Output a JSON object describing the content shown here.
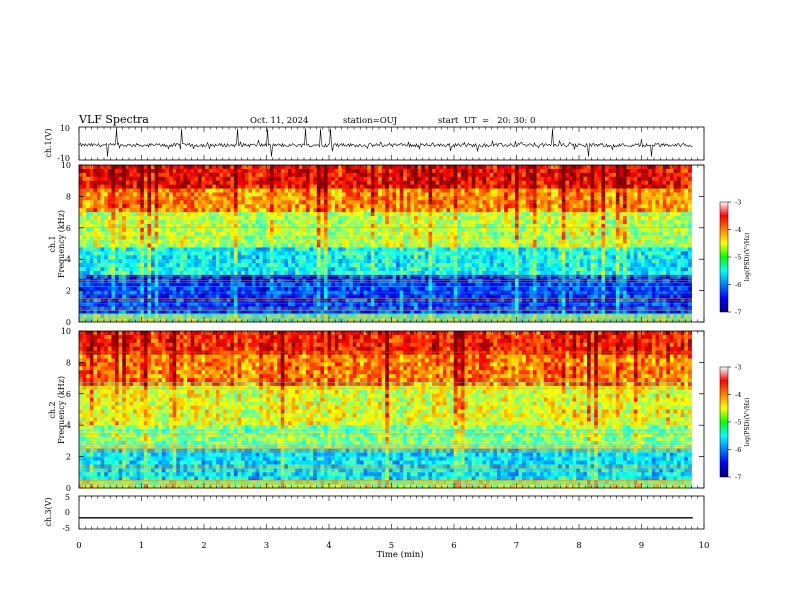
{
  "header": {
    "title": "VLF Spectra",
    "date": "Oct. 11, 2024",
    "station": "station=OUJ",
    "start": "start  UT  =   20: 30: 0"
  },
  "chart_data": [
    {
      "type": "line",
      "name": "waveform-ch1",
      "ylabel": "ch.1(V)",
      "ylim": [
        -10,
        10
      ],
      "yticks": [
        "10",
        "-10"
      ],
      "xlim": [
        0,
        10
      ],
      "description": "noisy ch.1 voltage trace near -1 V with spikes, data until ~9.8 min"
    },
    {
      "type": "heatmap",
      "name": "spectrogram-ch1",
      "ylabel": "ch.1\nFrequency (kHz)",
      "ylim": [
        0,
        10
      ],
      "yticks": [
        "0",
        "2",
        "4",
        "6",
        "8",
        "10"
      ],
      "xlim": [
        0,
        10
      ],
      "data_end_min": 9.8,
      "colorbar": {
        "label": "log(PSD)(V²/Hz)",
        "ticks": [
          "-3",
          "-4",
          "-5",
          "-6",
          "-7"
        ],
        "range": [
          -7,
          -3
        ]
      },
      "bands": [
        {
          "f_low": 0,
          "f_high": 0.5,
          "level": -5.2
        },
        {
          "f_low": 0.5,
          "f_high": 3,
          "level": -6.3
        },
        {
          "f_low": 3,
          "f_high": 4.8,
          "level": -5.5
        },
        {
          "f_low": 4.8,
          "f_high": 7,
          "level": -4.8
        },
        {
          "f_low": 7,
          "f_high": 8.5,
          "level": -4.1
        },
        {
          "f_low": 8.5,
          "f_high": 10,
          "level": -3.5
        }
      ]
    },
    {
      "type": "heatmap",
      "name": "spectrogram-ch2",
      "ylabel": "ch.2\nFrequency (kHz)",
      "ylim": [
        0,
        10
      ],
      "yticks": [
        "0",
        "2",
        "4",
        "6",
        "8",
        "10"
      ],
      "xlim": [
        0,
        10
      ],
      "data_end_min": 9.8,
      "colorbar": {
        "label": "log(PSD)(V²/Hz)",
        "ticks": [
          "-3",
          "-4",
          "-5",
          "-6",
          "-7"
        ],
        "range": [
          -7,
          -3
        ]
      },
      "bands": [
        {
          "f_low": 0,
          "f_high": 0.6,
          "level": -4.6
        },
        {
          "f_low": 0.6,
          "f_high": 2.6,
          "level": -5.6
        },
        {
          "f_low": 2.6,
          "f_high": 4,
          "level": -5.0
        },
        {
          "f_low": 4,
          "f_high": 6.5,
          "level": -4.6
        },
        {
          "f_low": 6.5,
          "f_high": 8.5,
          "level": -4.0
        },
        {
          "f_low": 8.5,
          "f_high": 10,
          "level": -3.6
        }
      ]
    },
    {
      "type": "line",
      "name": "waveform-ch3",
      "ylabel": "ch.3(V)",
      "ylim": [
        -5,
        5
      ],
      "yticks": [
        "5",
        "0",
        "-5"
      ],
      "xlim": [
        0,
        10
      ],
      "constant_value": -1.6,
      "xlabel": "Time (min)",
      "xticks": [
        "0",
        "1",
        "2",
        "3",
        "4",
        "5",
        "6",
        "7",
        "8",
        "9",
        "10"
      ]
    }
  ]
}
